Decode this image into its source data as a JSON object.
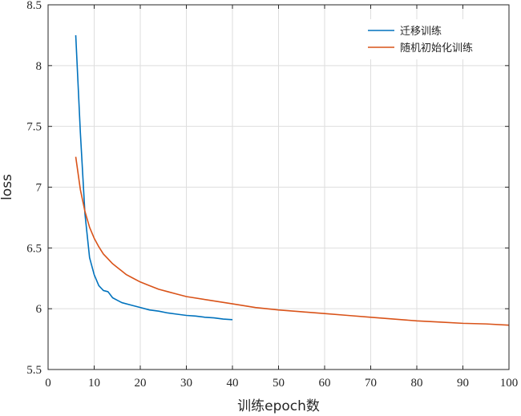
{
  "chart_data": {
    "type": "line",
    "xlabel": "训练epoch数",
    "ylabel": "loss",
    "xlim": [
      0,
      100
    ],
    "ylim": [
      5.5,
      8.5
    ],
    "xticks": [
      0,
      10,
      20,
      30,
      40,
      50,
      60,
      70,
      80,
      90,
      100
    ],
    "xtick_labels": [
      "0",
      "10",
      "20",
      "30",
      "40",
      "50",
      "60",
      "70",
      "80",
      "90",
      "100"
    ],
    "yticks": [
      5.5,
      6,
      6.5,
      7,
      7.5,
      8,
      8.5
    ],
    "ytick_labels": [
      "5.5",
      "6",
      "6.5",
      "7",
      "7.5",
      "8",
      "8.5"
    ],
    "grid": true,
    "legend_position": "top-right",
    "series": [
      {
        "name": "迁移训练",
        "color": "#0072BD",
        "x": [
          6,
          7,
          8,
          9,
          10,
          11,
          12,
          13,
          14,
          15,
          16,
          18,
          20,
          22,
          24,
          26,
          28,
          30,
          32,
          34,
          36,
          38,
          40
        ],
        "y": [
          8.25,
          7.45,
          6.78,
          6.42,
          6.28,
          6.19,
          6.15,
          6.14,
          6.09,
          6.07,
          6.05,
          6.03,
          6.01,
          5.99,
          5.98,
          5.965,
          5.955,
          5.945,
          5.94,
          5.93,
          5.925,
          5.915,
          5.91
        ]
      },
      {
        "name": "随机初始化训练",
        "color": "#D95319",
        "x": [
          6,
          7,
          8,
          9,
          10,
          11,
          12,
          13,
          14,
          15,
          16,
          17,
          18,
          20,
          22,
          24,
          26,
          28,
          30,
          35,
          40,
          45,
          50,
          55,
          60,
          65,
          70,
          75,
          80,
          85,
          90,
          95,
          100
        ],
        "y": [
          7.25,
          6.98,
          6.8,
          6.67,
          6.58,
          6.51,
          6.45,
          6.41,
          6.37,
          6.34,
          6.31,
          6.28,
          6.26,
          6.22,
          6.19,
          6.16,
          6.14,
          6.12,
          6.1,
          6.07,
          6.04,
          6.01,
          5.99,
          5.975,
          5.96,
          5.945,
          5.93,
          5.915,
          5.9,
          5.89,
          5.88,
          5.875,
          5.865
        ]
      }
    ]
  }
}
